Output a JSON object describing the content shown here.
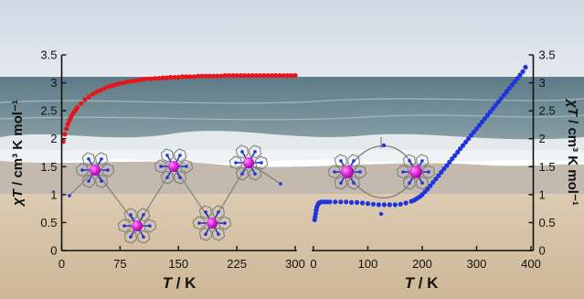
{
  "colors": {
    "series_left": "#e8141c",
    "series_right": "#1f33e0",
    "axis": "#111111",
    "metal_atom": "#e020d8",
    "ligand_bond": "#7a7a7a",
    "nitrogen_atom": "#1f33e0",
    "sky": "#d9e3ec",
    "sea": "#6f8b95",
    "foam": "#eef2f3",
    "sand": "#d8c7ad"
  },
  "chart_data": [
    {
      "type": "scatter",
      "xlabel_var": "T",
      "xlabel_unit": "K",
      "ylabel_var": "χT",
      "ylabel_unit": "cm³ K mol⁻¹",
      "xlim": [
        0,
        300
      ],
      "ylim": [
        0,
        3.5
      ],
      "x_ticks": [
        "0",
        "75",
        "150",
        "225",
        "300"
      ],
      "y_ticks": [
        "0",
        "0.5",
        "1",
        "1.5",
        "2",
        "2.5",
        "3",
        "3.5"
      ],
      "y_axis_side": "left",
      "grid": false,
      "series": [
        {
          "color": "#e8141c",
          "x": [
            2,
            4,
            6,
            8,
            10,
            12,
            14,
            16,
            18,
            20,
            25,
            30,
            35,
            40,
            45,
            50,
            55,
            60,
            65,
            70,
            75,
            80,
            85,
            90,
            95,
            100,
            105,
            110,
            115,
            120,
            125,
            130,
            135,
            140,
            145,
            150,
            155,
            160,
            165,
            170,
            175,
            180,
            185,
            190,
            195,
            200,
            205,
            210,
            215,
            220,
            225,
            230,
            235,
            240,
            245,
            250,
            255,
            260,
            265,
            270,
            275,
            280,
            285,
            290,
            295,
            300
          ],
          "y": [
            1.95,
            2.08,
            2.18,
            2.26,
            2.33,
            2.39,
            2.44,
            2.48,
            2.52,
            2.56,
            2.63,
            2.7,
            2.75,
            2.8,
            2.84,
            2.87,
            2.9,
            2.93,
            2.95,
            2.97,
            2.99,
            3.0,
            3.02,
            3.03,
            3.04,
            3.05,
            3.06,
            3.07,
            3.07,
            3.08,
            3.08,
            3.09,
            3.09,
            3.1,
            3.1,
            3.1,
            3.11,
            3.11,
            3.11,
            3.11,
            3.12,
            3.12,
            3.12,
            3.12,
            3.12,
            3.12,
            3.12,
            3.13,
            3.13,
            3.13,
            3.13,
            3.13,
            3.13,
            3.13,
            3.13,
            3.13,
            3.13,
            3.13,
            3.13,
            3.13,
            3.13,
            3.13,
            3.13,
            3.13,
            3.13,
            3.13
          ]
        }
      ]
    },
    {
      "type": "scatter",
      "xlabel_var": "T",
      "xlabel_unit": "K",
      "ylabel_var": "χT",
      "ylabel_unit": "cm³ K mol⁻¹",
      "xlim": [
        0,
        400
      ],
      "ylim": [
        0,
        3.5
      ],
      "x_ticks": [
        "0",
        "100",
        "200",
        "300",
        "400"
      ],
      "y_ticks": [
        "0",
        "0.5",
        "1",
        "1.5",
        "2",
        "2.5",
        "3",
        "3.5"
      ],
      "y_axis_side": "right",
      "grid": false,
      "series": [
        {
          "color": "#1f33e0",
          "x": [
            2,
            3,
            4,
            5,
            6,
            8,
            10,
            12,
            15,
            20,
            25,
            30,
            40,
            50,
            60,
            70,
            80,
            90,
            100,
            110,
            120,
            130,
            140,
            150,
            160,
            170,
            180,
            185,
            190,
            195,
            200,
            205,
            210,
            215,
            220,
            225,
            230,
            235,
            240,
            245,
            250,
            255,
            260,
            265,
            270,
            275,
            280,
            285,
            290,
            295,
            300,
            305,
            310,
            315,
            320,
            325,
            330,
            335,
            340,
            345,
            350,
            355,
            360,
            365,
            370,
            375,
            380,
            385,
            390
          ],
          "y": [
            0.55,
            0.6,
            0.66,
            0.72,
            0.77,
            0.82,
            0.85,
            0.86,
            0.87,
            0.87,
            0.87,
            0.87,
            0.87,
            0.87,
            0.87,
            0.86,
            0.86,
            0.85,
            0.84,
            0.83,
            0.82,
            0.82,
            0.82,
            0.82,
            0.83,
            0.85,
            0.88,
            0.9,
            0.93,
            0.96,
            1.0,
            1.05,
            1.1,
            1.16,
            1.22,
            1.28,
            1.34,
            1.4,
            1.46,
            1.52,
            1.58,
            1.64,
            1.7,
            1.76,
            1.82,
            1.88,
            1.94,
            2.0,
            2.06,
            2.12,
            2.18,
            2.24,
            2.3,
            2.36,
            2.42,
            2.48,
            2.54,
            2.6,
            2.66,
            2.72,
            2.78,
            2.84,
            2.9,
            2.96,
            3.02,
            3.08,
            3.14,
            3.2,
            3.28
          ]
        }
      ]
    }
  ]
}
